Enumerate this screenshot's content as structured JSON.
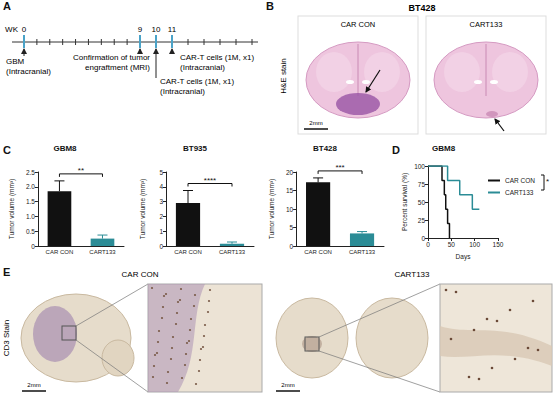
{
  "figure": {
    "panel_labels": [
      "A",
      "B",
      "C",
      "D",
      "E"
    ],
    "timeline": {
      "unit": "WK",
      "weeks": [
        0,
        9,
        10,
        11
      ],
      "events": [
        {
          "week": 0,
          "lines": [
            "GBM",
            "(Intracranial)"
          ]
        },
        {
          "week": 9,
          "lines": [
            "Confirmation of tumor",
            "engraftment (MRI)"
          ]
        },
        {
          "week": 10,
          "lines": [
            "CAR-T cells (1M, x1)",
            "(Intracranial)"
          ]
        },
        {
          "week": 11,
          "lines": [
            "CAR-T cells (1M, x1)",
            "(Intracranial)"
          ]
        }
      ]
    },
    "histology_B": {
      "title": "BT428",
      "stain": "H&E stain",
      "images": [
        "CAR CON",
        "CART133"
      ],
      "scale_bar": "2mm"
    },
    "histology_E": {
      "stain": "CD3 Stain",
      "images": [
        "CAR CON",
        "CART133"
      ],
      "scale_bar": "2mm"
    }
  },
  "chart_data": [
    {
      "type": "bar",
      "title": "GBM8",
      "ylabel": "Tumor volume (mm³)",
      "categories": [
        "CAR CON",
        "CART133"
      ],
      "values": [
        1.85,
        0.25
      ],
      "errors": [
        0.35,
        0.12
      ],
      "colors": [
        "#111111",
        "#2b8c96"
      ],
      "ylim": [
        0,
        2.5
      ],
      "yticks": [
        0,
        0.5,
        {
          "value": 1,
          "label": "1.0"
        },
        1.5,
        {
          "value": 2,
          "label": "2.0"
        },
        2.5
      ],
      "annotations": [
        "**"
      ]
    },
    {
      "type": "bar",
      "title": "BT935",
      "ylabel": "Tumor volume (mm³)",
      "categories": [
        "CAR CON",
        "CART133"
      ],
      "values": [
        2.9,
        0.15
      ],
      "errors": [
        0.85,
        0.12
      ],
      "colors": [
        "#111111",
        "#2b8c96"
      ],
      "ylim": [
        0,
        5
      ],
      "yticks": [
        0,
        1,
        2,
        3,
        4,
        5
      ],
      "annotations": [
        "****"
      ]
    },
    {
      "type": "bar",
      "title": "BT428",
      "ylabel": "Tumor volume (mm³)",
      "categories": [
        "CAR CON",
        "CART133"
      ],
      "values": [
        17.2,
        3.4
      ],
      "errors": [
        1.2,
        0.5
      ],
      "colors": [
        "#111111",
        "#2b8c96"
      ],
      "ylim": [
        0,
        20
      ],
      "yticks": [
        0,
        5,
        10,
        15,
        20
      ],
      "annotations": [
        "***"
      ]
    },
    {
      "type": "line",
      "title": "GBM8",
      "xlabel": "Days",
      "ylabel": "Percent survival (%)",
      "xlim": [
        0,
        150
      ],
      "xticks": [
        0,
        50,
        100,
        150
      ],
      "ylim": [
        0,
        100
      ],
      "yticks": [
        0,
        25,
        50,
        75,
        100
      ],
      "line_style": "step",
      "legend": "upper right",
      "annotations": [
        "*"
      ],
      "series": [
        {
          "name": "CAR CON",
          "color": "#111111",
          "x": [
            0,
            30,
            35,
            38,
            42,
            46
          ],
          "values": [
            100,
            80,
            60,
            40,
            20,
            0
          ]
        },
        {
          "name": "CART133",
          "color": "#2b8c96",
          "x": [
            0,
            42,
            68,
            95,
            110
          ],
          "values": [
            100,
            80,
            60,
            40,
            40
          ]
        }
      ]
    }
  ]
}
